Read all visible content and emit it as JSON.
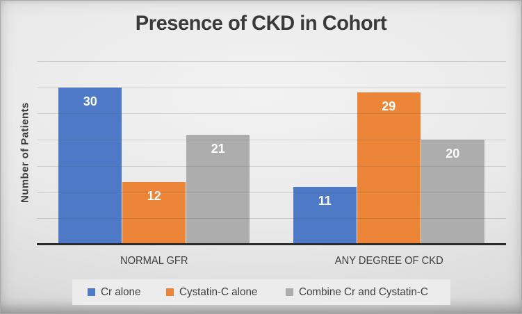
{
  "title": "Presence of CKD in Cohort",
  "chart_data": {
    "type": "bar",
    "title": "Presence of CKD in Cohort",
    "categories": [
      "NORMAL GFR",
      "ANY DEGREE OF CKD"
    ],
    "series": [
      {
        "name": "Cr alone",
        "color": "#4d79c6",
        "values": [
          30,
          11
        ]
      },
      {
        "name": "Cystatin-C alone",
        "color": "#ec8537",
        "values": [
          12,
          29
        ]
      },
      {
        "name": "Combine Cr and Cystatin-C",
        "color": "#adadad",
        "values": [
          21,
          20
        ]
      }
    ],
    "xlabel": "",
    "ylabel": "Number of Patients",
    "ylim": [
      0,
      35
    ],
    "ytick_step": 5,
    "y_tick_labels_visible": false,
    "grid": true,
    "legend_position": "bottom",
    "data_labels": "inside-end-white"
  },
  "colors": {
    "title_text": "#3a3a3a",
    "axis_text": "#3f3f3f",
    "axis_line": "#2b2b2b",
    "gridline": "#c6c6c6",
    "legend_background": "#ececec",
    "bar_value_text": "#ffffff"
  }
}
